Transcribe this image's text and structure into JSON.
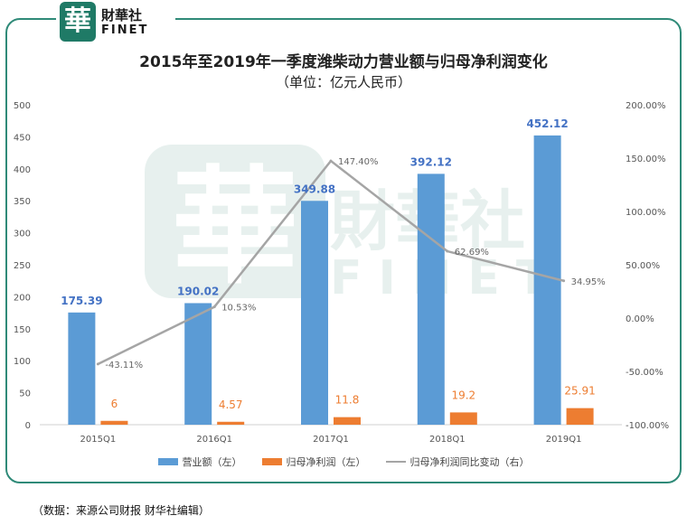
{
  "brand": {
    "logo_char": "華",
    "name_cn": "財華社",
    "name_en": "FINET"
  },
  "chart_data": {
    "type": "bar",
    "title": "2015年至2019年一季度潍柴动力营业额与归母净利润变化",
    "subtitle": "（单位：亿元人民币）",
    "categories": [
      "2015Q1",
      "2016Q1",
      "2017Q1",
      "2018Q1",
      "2019Q1"
    ],
    "series": [
      {
        "name": "营业额（左）",
        "axis": "left",
        "kind": "bar",
        "color": "#5b9bd5",
        "values": [
          175.39,
          190.02,
          349.88,
          392.12,
          452.12
        ],
        "labels": [
          "175.39",
          "190.02",
          "349.88",
          "392.12",
          "452.12"
        ]
      },
      {
        "name": "归母净利润（左）",
        "axis": "left",
        "kind": "bar",
        "color": "#ed7d31",
        "values": [
          6,
          4.57,
          11.8,
          19.2,
          25.91
        ],
        "labels": [
          "6",
          "4.57",
          "11.8",
          "19.2",
          "25.91"
        ]
      },
      {
        "name": "归母净利润同比变动（右）",
        "axis": "right",
        "kind": "line",
        "color": "#a5a5a5",
        "values": [
          -43.11,
          10.53,
          147.4,
          62.69,
          34.95
        ],
        "labels": [
          "-43.11%",
          "10.53%",
          "147.40%",
          "62.69%",
          "34.95%"
        ]
      }
    ],
    "ylim_left": [
      0,
      500
    ],
    "yticks_left": [
      "0",
      "50",
      "100",
      "150",
      "200",
      "250",
      "300",
      "350",
      "400",
      "450",
      "500"
    ],
    "ylim_right": [
      -100,
      200
    ],
    "yticks_right": [
      "-100.00%",
      "-50.00%",
      "0.00%",
      "50.00%",
      "100.00%",
      "150.00%",
      "200.00%"
    ],
    "legend_position": "bottom",
    "grid": false
  },
  "source_note": "（数据：来源公司财报 财华社编辑）"
}
